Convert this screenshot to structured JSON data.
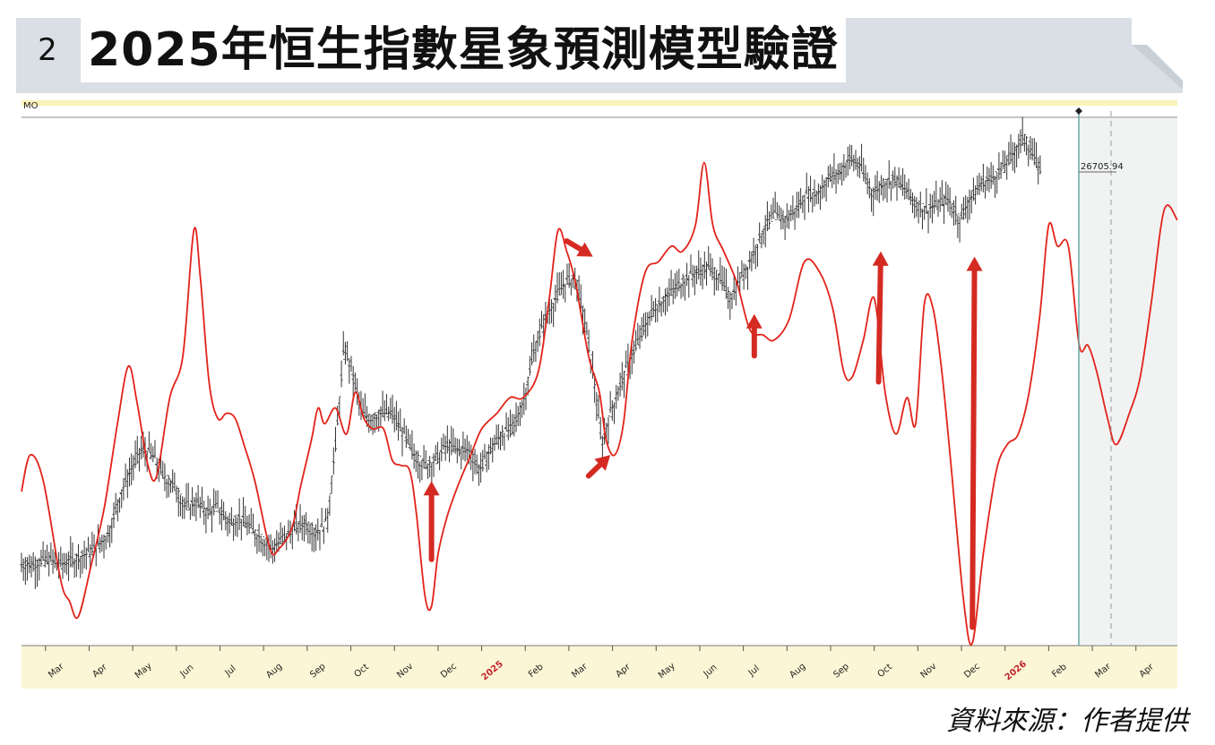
{
  "figure": {
    "number": "2",
    "title": "2025年恒生指數星象預測模型驗證",
    "source_note": "資料來源：作者提供",
    "panel_tag": "MO",
    "price_readout": "26705.94"
  },
  "colors": {
    "model_line": "#e2231a",
    "price_bars": "#333333",
    "arrow": "#d42a22",
    "header_band": "#d9dfe4",
    "axis_band": "#fbf6d5",
    "forecast_shade": "#f1f3f3",
    "current_line": "#6aa8a6",
    "year_label": "#c0262c"
  },
  "chart_data": {
    "type": "line",
    "title": "2025年恒生指數星象預測模型驗證",
    "xlabel": "",
    "ylabel": "",
    "x_ticks": [
      "Mar",
      "Apr",
      "May",
      "Jun",
      "Jul",
      "Aug",
      "Sep",
      "Oct",
      "Nov",
      "Dec",
      "2025",
      "Feb",
      "Mar",
      "Apr",
      "May",
      "Jun",
      "Jul",
      "Aug",
      "Sep",
      "Oct",
      "Nov",
      "Dec",
      "2026",
      "Feb",
      "Mar",
      "Apr"
    ],
    "year_ticks": [
      "2025",
      "2026"
    ],
    "x_range_months": [
      0,
      26.5
    ],
    "current_date_month": 23.55,
    "series": [
      {
        "kind": "model",
        "points": [
          [
            0,
            0.29
          ],
          [
            0.2,
            0.36
          ],
          [
            0.5,
            0.31
          ],
          [
            0.9,
            0.12
          ],
          [
            1.1,
            0.08
          ],
          [
            1.3,
            0.05
          ],
          [
            1.6,
            0.15
          ],
          [
            1.9,
            0.26
          ],
          [
            2.2,
            0.42
          ],
          [
            2.45,
            0.53
          ],
          [
            2.65,
            0.46
          ],
          [
            2.9,
            0.34
          ],
          [
            3.1,
            0.32
          ],
          [
            3.4,
            0.47
          ],
          [
            3.7,
            0.55
          ],
          [
            3.95,
            0.79
          ],
          [
            4.1,
            0.7
          ],
          [
            4.3,
            0.5
          ],
          [
            4.5,
            0.43
          ],
          [
            4.7,
            0.44
          ],
          [
            4.9,
            0.43
          ],
          [
            5.1,
            0.38
          ],
          [
            5.35,
            0.31
          ],
          [
            5.7,
            0.18
          ],
          [
            5.9,
            0.18
          ],
          [
            6.2,
            0.22
          ],
          [
            6.4,
            0.3
          ],
          [
            6.65,
            0.39
          ],
          [
            6.8,
            0.45
          ],
          [
            6.95,
            0.42
          ],
          [
            7.2,
            0.45
          ],
          [
            7.45,
            0.4
          ],
          [
            7.65,
            0.48
          ],
          [
            7.85,
            0.43
          ],
          [
            8.05,
            0.41
          ],
          [
            8.3,
            0.41
          ],
          [
            8.5,
            0.35
          ],
          [
            8.7,
            0.34
          ],
          [
            8.9,
            0.33
          ],
          [
            9.05,
            0.25
          ],
          [
            9.25,
            0.09
          ],
          [
            9.4,
            0.07
          ],
          [
            9.55,
            0.17
          ],
          [
            9.75,
            0.24
          ],
          [
            10.0,
            0.3
          ],
          [
            10.3,
            0.36
          ],
          [
            10.55,
            0.41
          ],
          [
            10.9,
            0.44
          ],
          [
            11.2,
            0.47
          ],
          [
            11.5,
            0.47
          ],
          [
            11.85,
            0.52
          ],
          [
            12.1,
            0.66
          ],
          [
            12.3,
            0.79
          ],
          [
            12.5,
            0.75
          ],
          [
            12.7,
            0.69
          ],
          [
            13.0,
            0.55
          ],
          [
            13.25,
            0.48
          ],
          [
            13.4,
            0.39
          ],
          [
            13.6,
            0.36
          ],
          [
            13.8,
            0.42
          ],
          [
            14.0,
            0.58
          ],
          [
            14.3,
            0.71
          ],
          [
            14.6,
            0.73
          ],
          [
            14.9,
            0.76
          ],
          [
            15.15,
            0.75
          ],
          [
            15.45,
            0.8
          ],
          [
            15.65,
            0.92
          ],
          [
            15.85,
            0.8
          ],
          [
            16.1,
            0.75
          ],
          [
            16.4,
            0.69
          ],
          [
            16.7,
            0.6
          ],
          [
            17.0,
            0.59
          ],
          [
            17.25,
            0.58
          ],
          [
            17.6,
            0.62
          ],
          [
            17.95,
            0.73
          ],
          [
            18.3,
            0.71
          ],
          [
            18.6,
            0.64
          ],
          [
            18.85,
            0.52
          ],
          [
            19.05,
            0.51
          ],
          [
            19.3,
            0.58
          ],
          [
            19.55,
            0.66
          ],
          [
            19.8,
            0.48
          ],
          [
            20.05,
            0.4
          ],
          [
            20.3,
            0.47
          ],
          [
            20.5,
            0.42
          ],
          [
            20.7,
            0.65
          ],
          [
            20.9,
            0.64
          ],
          [
            21.1,
            0.52
          ],
          [
            21.3,
            0.35
          ],
          [
            21.6,
            0.08
          ],
          [
            21.8,
            0.0
          ],
          [
            22.05,
            0.17
          ],
          [
            22.35,
            0.33
          ],
          [
            22.6,
            0.38
          ],
          [
            22.85,
            0.4
          ],
          [
            23.1,
            0.48
          ],
          [
            23.35,
            0.63
          ],
          [
            23.55,
            0.8
          ],
          [
            23.75,
            0.76
          ],
          [
            24.0,
            0.76
          ],
          [
            24.25,
            0.57
          ],
          [
            24.45,
            0.57
          ],
          [
            24.65,
            0.52
          ],
          [
            24.9,
            0.43
          ],
          [
            25.1,
            0.38
          ],
          [
            25.4,
            0.44
          ],
          [
            25.65,
            0.51
          ],
          [
            25.9,
            0.65
          ],
          [
            26.2,
            0.83
          ],
          [
            26.5,
            0.81
          ]
        ]
      },
      {
        "kind": "price",
        "points": [
          [
            0,
            0.15
          ],
          [
            0.3,
            0.15
          ],
          [
            0.6,
            0.16
          ],
          [
            0.9,
            0.15
          ],
          [
            1.2,
            0.16
          ],
          [
            1.5,
            0.17
          ],
          [
            1.8,
            0.19
          ],
          [
            2.0,
            0.21
          ],
          [
            2.25,
            0.28
          ],
          [
            2.5,
            0.33
          ],
          [
            2.75,
            0.37
          ],
          [
            3.0,
            0.36
          ],
          [
            3.25,
            0.32
          ],
          [
            3.5,
            0.3
          ],
          [
            3.75,
            0.26
          ],
          [
            4.0,
            0.27
          ],
          [
            4.25,
            0.25
          ],
          [
            4.5,
            0.26
          ],
          [
            4.75,
            0.23
          ],
          [
            5.0,
            0.24
          ],
          [
            5.25,
            0.22
          ],
          [
            5.5,
            0.2
          ],
          [
            5.75,
            0.18
          ],
          [
            6.0,
            0.2
          ],
          [
            6.25,
            0.22
          ],
          [
            6.5,
            0.23
          ],
          [
            6.75,
            0.21
          ],
          [
            7.0,
            0.23
          ],
          [
            7.2,
            0.38
          ],
          [
            7.4,
            0.57
          ],
          [
            7.6,
            0.51
          ],
          [
            7.8,
            0.44
          ],
          [
            8.0,
            0.43
          ],
          [
            8.25,
            0.44
          ],
          [
            8.5,
            0.44
          ],
          [
            8.75,
            0.4
          ],
          [
            9.0,
            0.36
          ],
          [
            9.25,
            0.34
          ],
          [
            9.5,
            0.35
          ],
          [
            9.75,
            0.38
          ],
          [
            10.0,
            0.37
          ],
          [
            10.25,
            0.37
          ],
          [
            10.5,
            0.33
          ],
          [
            10.75,
            0.37
          ],
          [
            11.0,
            0.4
          ],
          [
            11.25,
            0.41
          ],
          [
            11.5,
            0.46
          ],
          [
            11.75,
            0.56
          ],
          [
            12.0,
            0.62
          ],
          [
            12.25,
            0.66
          ],
          [
            12.45,
            0.69
          ],
          [
            12.7,
            0.7
          ],
          [
            12.9,
            0.62
          ],
          [
            13.1,
            0.52
          ],
          [
            13.3,
            0.38
          ],
          [
            13.5,
            0.44
          ],
          [
            13.75,
            0.5
          ],
          [
            14.0,
            0.55
          ],
          [
            14.25,
            0.6
          ],
          [
            14.5,
            0.64
          ],
          [
            14.75,
            0.66
          ],
          [
            15.0,
            0.68
          ],
          [
            15.25,
            0.7
          ],
          [
            15.5,
            0.71
          ],
          [
            15.75,
            0.72
          ],
          [
            16.0,
            0.7
          ],
          [
            16.25,
            0.66
          ],
          [
            16.5,
            0.7
          ],
          [
            16.75,
            0.74
          ],
          [
            17.0,
            0.79
          ],
          [
            17.25,
            0.82
          ],
          [
            17.5,
            0.81
          ],
          [
            17.75,
            0.83
          ],
          [
            18.0,
            0.86
          ],
          [
            18.25,
            0.86
          ],
          [
            18.5,
            0.89
          ],
          [
            18.75,
            0.9
          ],
          [
            19.0,
            0.93
          ],
          [
            19.25,
            0.91
          ],
          [
            19.5,
            0.86
          ],
          [
            19.75,
            0.88
          ],
          [
            20.0,
            0.89
          ],
          [
            20.25,
            0.87
          ],
          [
            20.5,
            0.84
          ],
          [
            20.75,
            0.83
          ],
          [
            21.0,
            0.84
          ],
          [
            21.25,
            0.85
          ],
          [
            21.5,
            0.81
          ],
          [
            21.75,
            0.85
          ],
          [
            22.0,
            0.88
          ],
          [
            22.25,
            0.89
          ],
          [
            22.5,
            0.91
          ],
          [
            22.75,
            0.94
          ],
          [
            23.0,
            0.97
          ],
          [
            23.2,
            0.93
          ],
          [
            23.4,
            0.9
          ]
        ]
      }
    ],
    "arrows": [
      {
        "from": [
          9.4,
          0.16
        ],
        "to": [
          9.4,
          0.31
        ]
      },
      {
        "from": [
          12.5,
          0.77
        ],
        "to": [
          13.1,
          0.74
        ]
      },
      {
        "from": [
          13.0,
          0.32
        ],
        "to": [
          13.5,
          0.36
        ]
      },
      {
        "from": [
          16.8,
          0.55
        ],
        "to": [
          16.8,
          0.63
        ]
      },
      {
        "from": [
          19.65,
          0.5
        ],
        "to": [
          19.7,
          0.75
        ]
      },
      {
        "from": [
          21.8,
          0.03
        ],
        "to": [
          21.85,
          0.74
        ]
      }
    ]
  }
}
